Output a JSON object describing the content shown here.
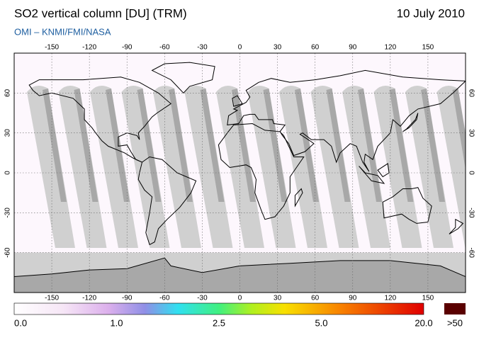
{
  "header": {
    "title": "SO2 vertical column [DU] (TRM)",
    "date": "10 July 2010",
    "source": "OMI  –  KNMI/FMI/NASA"
  },
  "map": {
    "lon_ticks": [
      -150,
      -120,
      -90,
      -60,
      -30,
      0,
      30,
      60,
      90,
      120,
      150
    ],
    "lat_ticks": [
      60,
      30,
      0,
      -30,
      -60
    ]
  },
  "colorbar": {
    "labels": [
      "0.0",
      "1.0",
      "2.5",
      "5.0",
      "20.0"
    ],
    "over_label": ">50"
  }
}
